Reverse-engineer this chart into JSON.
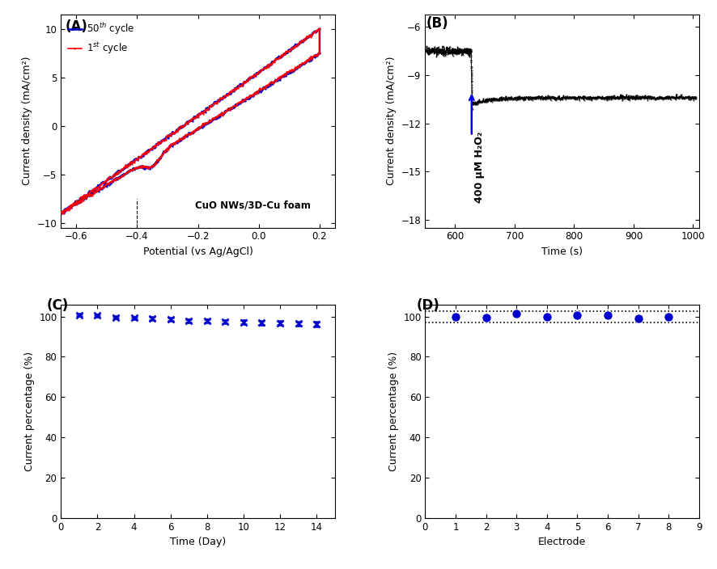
{
  "panel_A": {
    "label": "(A)",
    "xlabel": "Potential (vs Ag/AgCl)",
    "ylabel": "Current density (mA/cm²)",
    "xlim": [
      -0.65,
      0.25
    ],
    "ylim": [
      -10.5,
      11.5
    ],
    "xticks": [
      -0.6,
      -0.4,
      -0.2,
      0.0,
      0.2
    ],
    "yticks": [
      -10,
      -5,
      0,
      5,
      10
    ],
    "annotation": "CuO NWs/3D-Cu foam",
    "dashed_x": -0.4,
    "legend1": "1$^{st}$ cycle",
    "legend2": "50$^{th}$ cycle",
    "color1": "#ff0000",
    "color2": "#0000cc"
  },
  "panel_B": {
    "label": "(B)",
    "xlabel": "Time (s)",
    "ylabel": "Current density (mA/cm²)",
    "xlim": [
      550,
      1010
    ],
    "ylim": [
      -18.5,
      -5.2
    ],
    "xticks": [
      600,
      700,
      800,
      900,
      1000
    ],
    "yticks": [
      -18,
      -15,
      -12,
      -9,
      -6
    ],
    "t_step": 627,
    "y_before": -7.5,
    "y_after": -10.8,
    "annotation": "400 μM H₂O₂",
    "arrow_color": "#0000ff"
  },
  "panel_C": {
    "label": "(C)",
    "xlabel": "Time (Day)",
    "ylabel": "Current percentage (%)",
    "xlim": [
      0,
      15
    ],
    "ylim": [
      0,
      106
    ],
    "xticks": [
      0,
      2,
      4,
      6,
      8,
      10,
      12,
      14
    ],
    "yticks": [
      0,
      20,
      40,
      60,
      80,
      100
    ],
    "days": [
      1,
      2,
      3,
      4,
      5,
      6,
      7,
      8,
      9,
      10,
      11,
      12,
      13,
      14
    ],
    "values": [
      100.8,
      100.5,
      99.5,
      99.3,
      99.0,
      98.5,
      98.0,
      97.8,
      97.5,
      97.2,
      97.0,
      96.8,
      96.5,
      96.2
    ],
    "errors": [
      0.5,
      0.5,
      0.6,
      0.6,
      0.7,
      0.8,
      0.8,
      0.9,
      0.9,
      1.0,
      1.0,
      1.1,
      1.1,
      1.2
    ],
    "color": "#0000cc"
  },
  "panel_D": {
    "label": "(D)",
    "xlabel": "Electrode",
    "ylabel": "Current percentage (%)",
    "xlim": [
      0,
      9
    ],
    "ylim": [
      0,
      106
    ],
    "xticks": [
      0,
      1,
      2,
      3,
      4,
      5,
      6,
      7,
      8,
      9
    ],
    "yticks": [
      0,
      20,
      40,
      60,
      80,
      100
    ],
    "electrodes": [
      1,
      2,
      3,
      4,
      5,
      6,
      7,
      8
    ],
    "values": [
      100.0,
      99.5,
      101.5,
      100.0,
      100.5,
      100.8,
      99.0,
      100.0
    ],
    "hline1": 97.0,
    "hline2": 102.5,
    "color": "#0000cc"
  }
}
